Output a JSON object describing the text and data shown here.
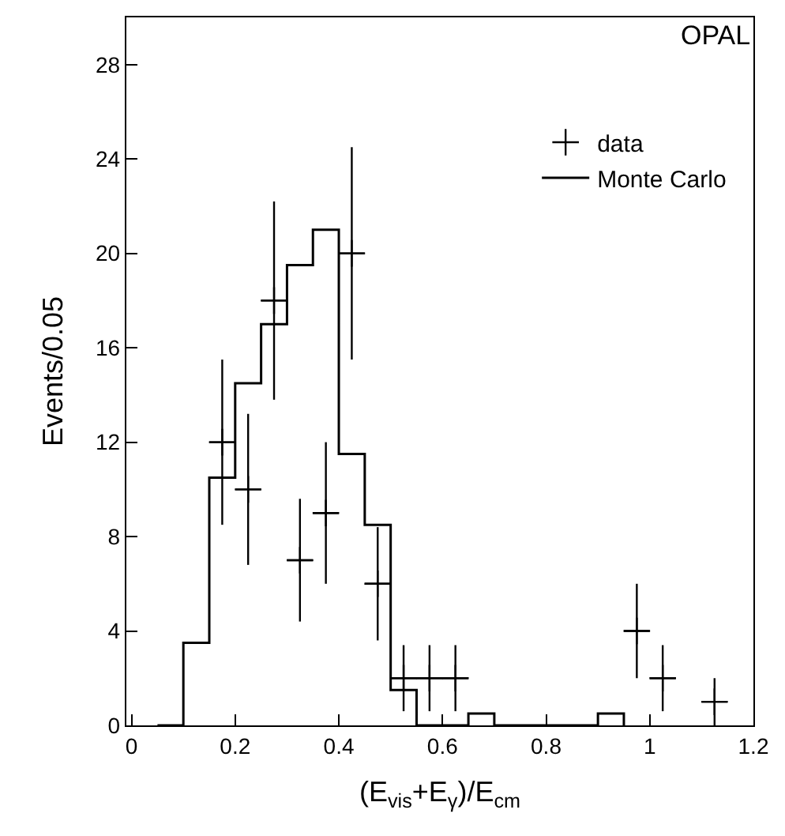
{
  "chart_data": {
    "type": "scatter",
    "ylabel": "Events/0.05",
    "xlabel": "(E$_{vis}$+E$_{γ}$)/E$_{cm}$",
    "annotations": [
      "OPAL"
    ],
    "xlim": [
      -0.01,
      1.2
    ],
    "xticks": [
      0,
      0.2,
      0.4,
      0.6,
      0.8,
      1,
      1.2
    ],
    "ylim": [
      0,
      30
    ],
    "yticks": [
      0,
      4,
      8,
      12,
      16,
      20,
      24,
      28
    ],
    "legend": "top right",
    "series": [
      {
        "name": "data",
        "marker": "cross",
        "color": "#000000",
        "x": [
          0.175,
          0.225,
          0.275,
          0.325,
          0.375,
          0.425,
          0.475,
          0.525,
          0.575,
          0.625,
          0.975,
          1.025,
          1.125
        ],
        "values": [
          12,
          10,
          18,
          7,
          9,
          20,
          6,
          2,
          2,
          2,
          4,
          2,
          1
        ],
        "errors": [
          3.5,
          3.2,
          4.2,
          2.6,
          3,
          4.5,
          2.4,
          1.4,
          1.4,
          1.4,
          2,
          1.4,
          1
        ],
        "xerrors": [
          0.025,
          0.025,
          0.025,
          0.025,
          0.025,
          0.025,
          0.025,
          0.025,
          0.025,
          0.025,
          0.025,
          0.025,
          0.025
        ]
      },
      {
        "name": "Monte Carlo",
        "type": "step",
        "color": "#000000",
        "line_style": "solid",
        "x": [
          0.05,
          0.1,
          0.15,
          0.2,
          0.25,
          0.3,
          0.35,
          0.4,
          0.45,
          0.5,
          0.55,
          0.6,
          0.65,
          0.7,
          0.75,
          0.8,
          0.85,
          0.9,
          0.95
        ],
        "values": [
          0,
          3.5,
          10.5,
          14.5,
          17,
          19.5,
          21,
          11.5,
          8.5,
          1.5,
          0,
          0,
          0.5,
          0,
          0,
          0,
          0,
          0.5,
          0
        ]
      }
    ]
  }
}
